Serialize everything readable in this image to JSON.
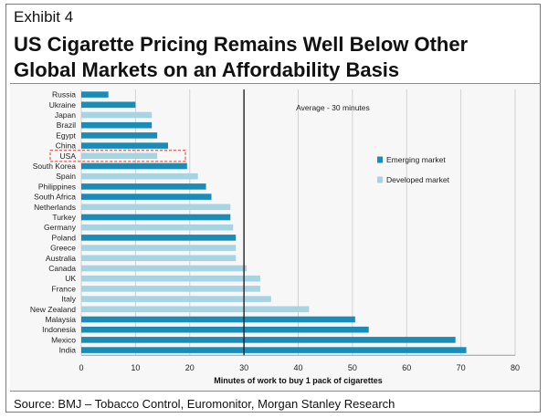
{
  "header": {
    "exhibit": "Exhibit 4",
    "title": "US Cigarette Pricing Remains Well Below Other Global Markets on an Affordability Basis"
  },
  "footer": {
    "source": "Source: BMJ – Tobacco Control, Euromonitor, Morgan Stanley Research"
  },
  "colors": {
    "emerging": "#1a8cb8",
    "developed": "#a6d4e3",
    "average_line": "#222222",
    "highlight_box": "#e4341f"
  },
  "chart_data": {
    "type": "bar",
    "orientation": "horizontal",
    "title": "",
    "xlabel": "Minutes of work to buy 1 pack of cigarettes",
    "ylabel": "",
    "xlim": [
      0,
      80
    ],
    "xticks": [
      0,
      10,
      20,
      30,
      40,
      50,
      60,
      70,
      80
    ],
    "grid": true,
    "legend_position": "right",
    "categories": [
      "Russia",
      "Ukraine",
      "Japan",
      "Brazil",
      "Egypt",
      "China",
      "USA",
      "South Korea",
      "Spain",
      "Philippines",
      "South Africa",
      "Netherlands",
      "Turkey",
      "Germany",
      "Poland",
      "Greece",
      "Australia",
      "Canada",
      "UK",
      "France",
      "Italy",
      "New Zealand",
      "Malaysia",
      "Indonesia",
      "Mexico",
      "India"
    ],
    "values": [
      5,
      10,
      13,
      13,
      14,
      16,
      14,
      19.5,
      21.5,
      23,
      24,
      27.5,
      27.5,
      28,
      28.5,
      28.5,
      28.5,
      30.5,
      33,
      33,
      35,
      42,
      50.5,
      53,
      69,
      71
    ],
    "market": [
      "emerging",
      "emerging",
      "developed",
      "emerging",
      "emerging",
      "emerging",
      "developed",
      "emerging",
      "developed",
      "emerging",
      "emerging",
      "developed",
      "emerging",
      "developed",
      "emerging",
      "developed",
      "developed",
      "developed",
      "developed",
      "developed",
      "developed",
      "developed",
      "emerging",
      "emerging",
      "emerging",
      "emerging"
    ],
    "legend": [
      {
        "key": "emerging",
        "label": "Emerging market"
      },
      {
        "key": "developed",
        "label": "Developed market"
      }
    ],
    "average": {
      "value": 30,
      "label": "Average - 30 minutes"
    },
    "highlight": "USA"
  }
}
